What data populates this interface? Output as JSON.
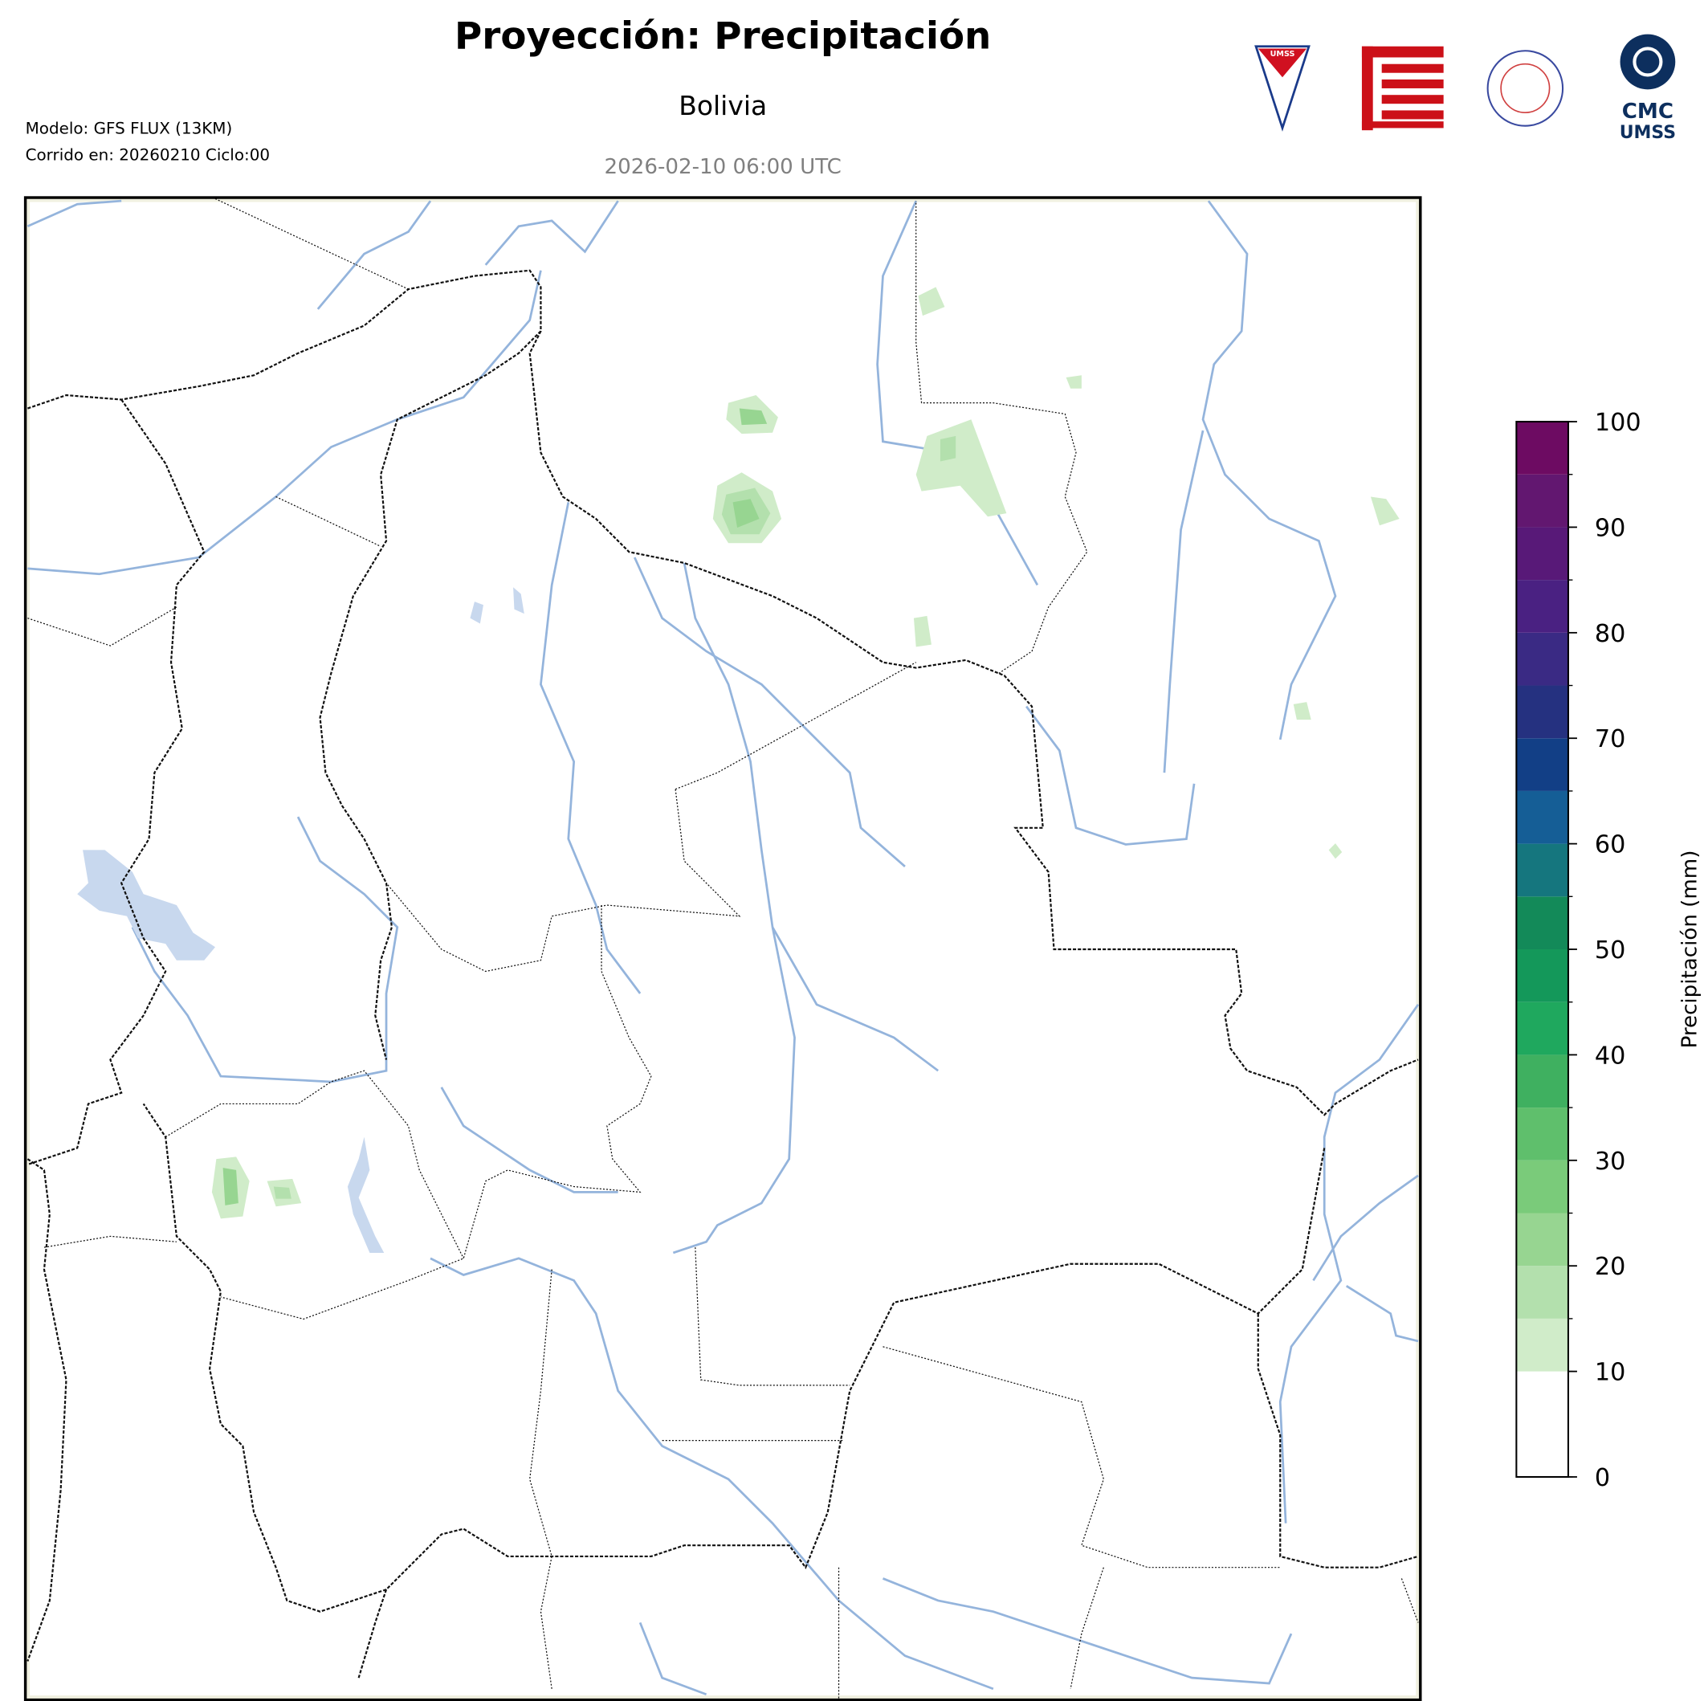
{
  "header": {
    "title": "Proyección: Precipitación",
    "subtitle": "Bolivia",
    "valid_time": "2026-02-10 06:00 UTC",
    "model": "Modelo: GFS FLUX (13KM)",
    "run": "Corrido en: 20260210 Ciclo:00"
  },
  "logos": {
    "umss": "UMSS",
    "cmc_line1": "CMC",
    "cmc_line2": "UMSS"
  },
  "colorbar": {
    "label": "Precipitación (mm)",
    "lim": [
      0,
      100
    ],
    "ticks": [
      0,
      10,
      20,
      30,
      40,
      50,
      60,
      70,
      80,
      90,
      100
    ],
    "levels": [
      0,
      10,
      15,
      20,
      25,
      30,
      35,
      40,
      45,
      50,
      55,
      60,
      65,
      70,
      75,
      80,
      85,
      90,
      95,
      100
    ],
    "colors": [
      "#ffffff",
      "#d0ecc9",
      "#b3e0ad",
      "#97d591",
      "#7acb7a",
      "#5fbf6c",
      "#3fb060",
      "#1fa85e",
      "#14985a",
      "#138a59",
      "#15767e",
      "#155e96",
      "#123f86",
      "#253180",
      "#3a2a84",
      "#4a2182",
      "#581978",
      "#621770",
      "#6d0b62"
    ]
  }
}
